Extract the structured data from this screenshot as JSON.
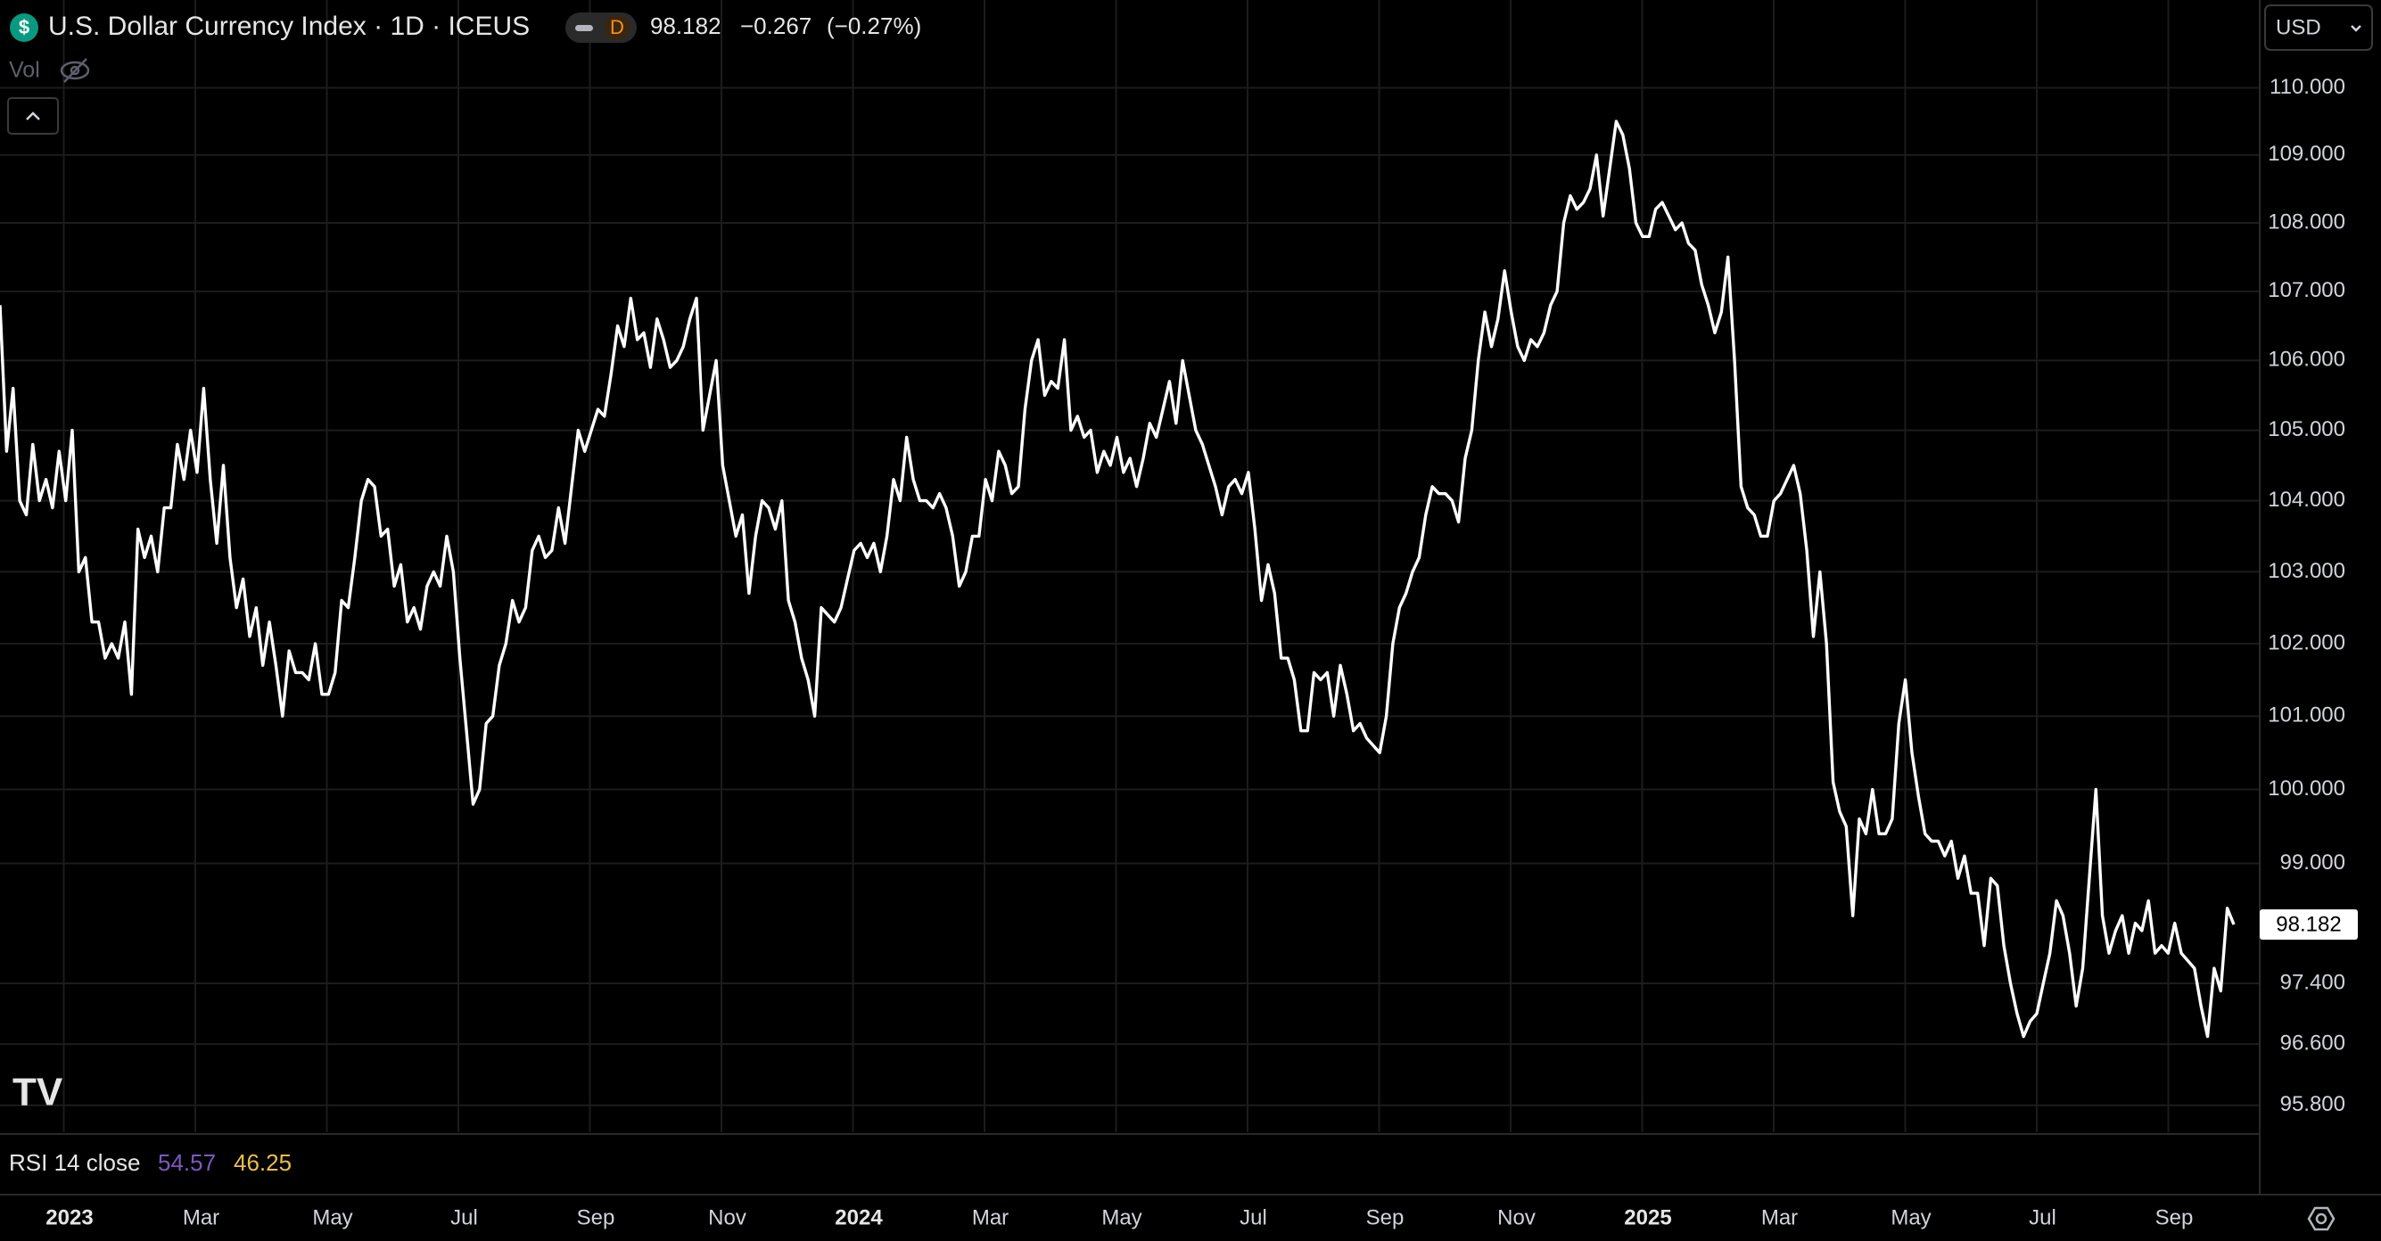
{
  "chart_data": {
    "type": "line",
    "title": "U.S. Dollar Currency Index · 1D · ICEUS",
    "interval_badge": "D",
    "price": "98.182",
    "change": "−0.267",
    "change_pct": "(−0.27%)",
    "currency": "USD",
    "volume_label": "Vol",
    "rsi_label": "RSI 14 close",
    "rsi_values": [
      {
        "value": 54.57,
        "color": "#7e57c2"
      },
      {
        "value": 46.25,
        "color": "#e9c046"
      }
    ],
    "log_scale": true,
    "grid": true,
    "x_labels": [
      "2023",
      "Mar",
      "May",
      "Jul",
      "Sep",
      "Nov",
      "2024",
      "Mar",
      "May",
      "Jul",
      "Sep",
      "Nov",
      "2025",
      "Mar",
      "May",
      "Jul",
      "Sep"
    ],
    "ylim": [
      95.45,
      111.32
    ],
    "yticks": [
      {
        "value": 110,
        "label": "110.000"
      },
      {
        "value": 109,
        "label": "109.000"
      },
      {
        "value": 108,
        "label": "108.000"
      },
      {
        "value": 107,
        "label": "107.000"
      },
      {
        "value": 106,
        "label": "106.000"
      },
      {
        "value": 105,
        "label": "105.000"
      },
      {
        "value": 104,
        "label": "104.000"
      },
      {
        "value": 103,
        "label": "103.000"
      },
      {
        "value": 102,
        "label": "102.000"
      },
      {
        "value": 101,
        "label": "101.000"
      },
      {
        "value": 100,
        "label": "100.000"
      },
      {
        "value": 99,
        "label": "99.000"
      },
      {
        "value": 97.4,
        "label": "97.400"
      },
      {
        "value": 96.6,
        "label": "96.600"
      },
      {
        "value": 95.8,
        "label": "95.800"
      }
    ],
    "series": [
      {
        "name": "U.S. Dollar Currency Index",
        "color": "#ffffff",
        "values": [
          106.8,
          104.7,
          105.6,
          104.0,
          103.8,
          104.8,
          104.0,
          104.3,
          103.9,
          104.7,
          104.0,
          105.0,
          103.0,
          103.2,
          102.3,
          102.3,
          101.8,
          102.0,
          101.8,
          102.3,
          101.3,
          103.6,
          103.2,
          103.5,
          103.0,
          103.9,
          103.9,
          104.8,
          104.3,
          105.0,
          104.4,
          105.6,
          104.3,
          103.4,
          104.5,
          103.2,
          102.5,
          102.9,
          102.1,
          102.5,
          101.7,
          102.3,
          101.7,
          101.0,
          101.9,
          101.6,
          101.6,
          101.5,
          102.0,
          101.3,
          101.3,
          101.6,
          102.6,
          102.5,
          103.2,
          104.0,
          104.3,
          104.2,
          103.5,
          103.6,
          102.8,
          103.1,
          102.3,
          102.5,
          102.2,
          102.8,
          103.0,
          102.8,
          103.5,
          103.0,
          101.8,
          100.8,
          99.8,
          100.0,
          100.9,
          101.0,
          101.7,
          102.0,
          102.6,
          102.3,
          102.5,
          103.3,
          103.5,
          103.2,
          103.3,
          103.9,
          103.4,
          104.2,
          105.0,
          104.7,
          105.0,
          105.3,
          105.2,
          105.8,
          106.5,
          106.2,
          106.9,
          106.3,
          106.4,
          105.9,
          106.6,
          106.3,
          105.9,
          106.0,
          106.2,
          106.6,
          106.9,
          105.0,
          105.5,
          106.0,
          104.5,
          104.0,
          103.5,
          103.8,
          102.7,
          103.5,
          104.0,
          103.9,
          103.6,
          104.0,
          102.6,
          102.3,
          101.8,
          101.5,
          101.0,
          102.5,
          102.4,
          102.3,
          102.5,
          102.9,
          103.3,
          103.4,
          103.2,
          103.4,
          103.0,
          103.5,
          104.3,
          104.0,
          104.9,
          104.3,
          104.0,
          104.0,
          103.9,
          104.1,
          103.9,
          103.5,
          102.8,
          103.0,
          103.5,
          103.5,
          104.3,
          104.0,
          104.7,
          104.5,
          104.1,
          104.2,
          105.3,
          106.0,
          106.3,
          105.5,
          105.7,
          105.6,
          106.3,
          105.0,
          105.2,
          104.9,
          105.0,
          104.4,
          104.7,
          104.5,
          104.9,
          104.4,
          104.6,
          104.2,
          104.6,
          105.1,
          104.9,
          105.3,
          105.7,
          105.1,
          106.0,
          105.5,
          105.0,
          104.8,
          104.5,
          104.2,
          103.8,
          104.2,
          104.3,
          104.1,
          104.4,
          103.6,
          102.6,
          103.1,
          102.7,
          101.8,
          101.8,
          101.5,
          100.8,
          100.8,
          101.6,
          101.5,
          101.6,
          101.0,
          101.7,
          101.3,
          100.8,
          100.9,
          100.7,
          100.6,
          100.5,
          101.0,
          102.0,
          102.5,
          102.7,
          103.0,
          103.2,
          103.8,
          104.2,
          104.1,
          104.1,
          104.0,
          103.7,
          104.6,
          105.0,
          106.0,
          106.7,
          106.2,
          106.6,
          107.3,
          106.7,
          106.2,
          106.0,
          106.3,
          106.2,
          106.4,
          106.8,
          107.0,
          108.0,
          108.4,
          108.2,
          108.3,
          108.5,
          109.0,
          108.1,
          108.8,
          109.5,
          109.3,
          108.8,
          108.0,
          107.8,
          107.8,
          108.2,
          108.3,
          108.1,
          107.9,
          108.0,
          107.7,
          107.6,
          107.1,
          106.8,
          106.4,
          106.7,
          107.5,
          106.0,
          104.2,
          103.9,
          103.8,
          103.5,
          103.5,
          104.0,
          104.1,
          104.3,
          104.5,
          104.1,
          103.3,
          102.1,
          103.0,
          102.0,
          100.1,
          99.7,
          99.5,
          98.3,
          99.6,
          99.4,
          100.0,
          99.4,
          99.4,
          99.6,
          100.9,
          101.5,
          100.5,
          99.9,
          99.4,
          99.3,
          99.3,
          99.1,
          99.3,
          98.8,
          99.1,
          98.6,
          98.6,
          97.9,
          98.8,
          98.7,
          97.9,
          97.4,
          97.0,
          96.7,
          96.9,
          97.0,
          97.4,
          97.8,
          98.5,
          98.3,
          97.8,
          97.1,
          97.6,
          98.8,
          100.0,
          98.3,
          97.8,
          98.1,
          98.3,
          97.8,
          98.2,
          98.1,
          98.5,
          97.8,
          97.9,
          97.8,
          98.2,
          97.8,
          97.7,
          97.6,
          97.1,
          96.7,
          97.6,
          97.3,
          98.4,
          98.182
        ]
      }
    ]
  }
}
